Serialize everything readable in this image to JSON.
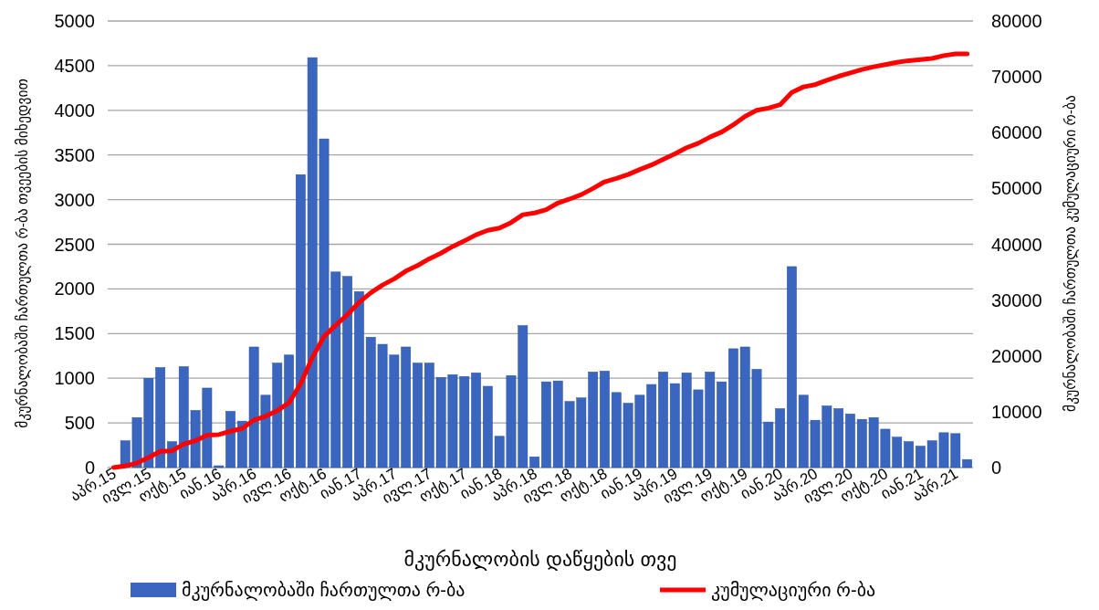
{
  "chart_data": {
    "type": "bar",
    "xlabel": "მკურნალობის დაწყების თვე",
    "ylabel": "მკურნალობაში ჩართულთა რ-ბა თვეების მიხედვით",
    "y2label": "მკურნალობაში ჩართულთა კუმულაციური რ-ბა",
    "categories": [
      "აპრ.15",
      null,
      null,
      "ივლ.15",
      null,
      null,
      "ოქტ.15",
      null,
      null,
      "იან.16",
      null,
      null,
      "აპრ.16",
      null,
      null,
      "ივლ.16",
      null,
      null,
      "ოქტ.16",
      null,
      null,
      "იან.17",
      null,
      null,
      "აპრ.17",
      null,
      null,
      "ივლ.17",
      null,
      null,
      "ოქტ.17",
      null,
      null,
      "იან.18",
      null,
      null,
      "აპრ.18",
      null,
      null,
      "ივლ.18",
      null,
      null,
      "ოქტ.18",
      null,
      null,
      "იან.19",
      null,
      null,
      "აპრ.19",
      null,
      null,
      "ივლ.19",
      null,
      null,
      "ოქტ.19",
      null,
      null,
      "იან.20",
      null,
      null,
      "აპრ.20",
      null,
      null,
      "ივლ.20",
      null,
      null,
      "ოქტ.20",
      null,
      null,
      "იან.21",
      null,
      null,
      "აპრ.21",
      null
    ],
    "series": [
      {
        "name": "მკურნალობაში ჩართულთა რ-ბა",
        "color": "#3a66c0",
        "values": [
          0,
          300,
          560,
          1000,
          1120,
          290,
          1130,
          640,
          890,
          20,
          630,
          520,
          1350,
          810,
          1170,
          1260,
          3280,
          4590,
          3680,
          2190,
          2140,
          1970,
          1460,
          1380,
          1260,
          1350,
          1170,
          1170,
          1010,
          1040,
          1020,
          1060,
          910,
          350,
          1030,
          1590,
          120,
          960,
          970,
          740,
          780,
          1070,
          1080,
          840,
          720,
          810,
          930,
          1070,
          940,
          1060,
          870,
          1070,
          960,
          1330,
          1350,
          1100,
          510,
          660,
          2250,
          810,
          530,
          690,
          660,
          600,
          540,
          560,
          430,
          340,
          290,
          240,
          300,
          390,
          380,
          90
        ]
      },
      {
        "name": "კუმულაციური რ-ბა",
        "type": "line",
        "axis": "y2",
        "color": "#ff0000",
        "values": [
          0,
          300,
          800,
          1800,
          2900,
          3000,
          4200,
          4800,
          5800,
          5900,
          6500,
          7000,
          8500,
          9200,
          10200,
          11600,
          15000,
          19700,
          23500,
          25500,
          27400,
          29600,
          31300,
          32700,
          33800,
          35200,
          36200,
          37400,
          38400,
          39600,
          40600,
          41700,
          42500,
          42900,
          43900,
          45300,
          45600,
          46200,
          47400,
          48100,
          48900,
          50000,
          51200,
          51800,
          52500,
          53400,
          54200,
          55200,
          56200,
          57300,
          58100,
          59200,
          60100,
          61400,
          62900,
          64000,
          64400,
          65000,
          67200,
          68200,
          68600,
          69400,
          70100,
          70700,
          71300,
          71800,
          72200,
          72600,
          72900,
          73100,
          73300,
          73800,
          74100,
          74100
        ]
      }
    ],
    "ylim": [
      0,
      5000
    ],
    "yticks": [
      0,
      500,
      1000,
      1500,
      2000,
      2500,
      3000,
      3500,
      4000,
      4500,
      5000
    ],
    "y2lim": [
      0,
      80000
    ],
    "y2ticks": [
      0,
      10000,
      20000,
      30000,
      40000,
      50000,
      60000,
      70000,
      80000
    ],
    "grid": "y",
    "legend": "bottom",
    "line_style": "solid",
    "marker": "none"
  }
}
